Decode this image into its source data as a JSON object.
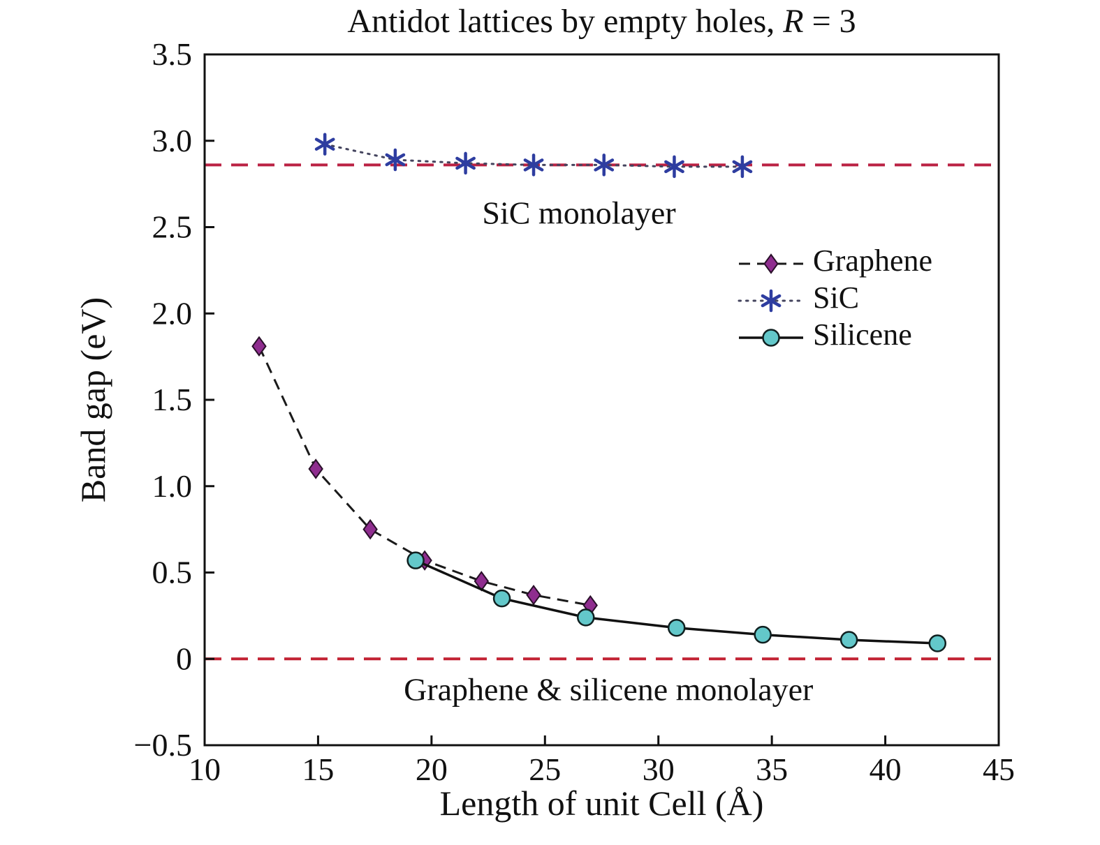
{
  "chart_data": {
    "type": "line",
    "title_parts": [
      {
        "text": "Antidot lattices by empty holes, ",
        "italic": false
      },
      {
        "text": "R",
        "italic": true
      },
      {
        "text": " = 3",
        "italic": false
      }
    ],
    "xlabel": "Length of unit Cell (Å)",
    "ylabel": "Band gap (eV)",
    "xlim": [
      10,
      45
    ],
    "ylim": [
      -0.5,
      3.5
    ],
    "xticks": [
      10,
      15,
      20,
      25,
      30,
      35,
      40,
      45
    ],
    "xtick_labels": [
      "10",
      "15",
      "20",
      "25",
      "30",
      "35",
      "40",
      "45"
    ],
    "yticks": [
      -0.5,
      0,
      0.5,
      1.0,
      1.5,
      2.0,
      2.5,
      3.0,
      3.5
    ],
    "ytick_labels": [
      "−0.5",
      "0",
      "0.5",
      "1.0",
      "1.5",
      "2.0",
      "2.5",
      "3.0",
      "3.5"
    ],
    "grid": false,
    "series": [
      {
        "name": "Graphene",
        "marker": "diamond",
        "marker_color": "#8f2d8f",
        "marker_edge": "#2a102a",
        "line_style": "dashed",
        "line_color": "#1a1a1a",
        "points": [
          [
            12.4,
            1.81
          ],
          [
            14.9,
            1.1
          ],
          [
            17.3,
            0.75
          ],
          [
            19.7,
            0.57
          ],
          [
            22.2,
            0.45
          ],
          [
            24.5,
            0.37
          ],
          [
            27.0,
            0.31
          ]
        ]
      },
      {
        "name": "SiC",
        "marker": "asterisk",
        "marker_color": "#2e3da0",
        "marker_edge": "#2e3da0",
        "line_style": "dotted",
        "line_color": "#44445e",
        "points": [
          [
            15.3,
            2.98
          ],
          [
            18.4,
            2.89
          ],
          [
            21.5,
            2.87
          ],
          [
            24.5,
            2.86
          ],
          [
            27.6,
            2.86
          ],
          [
            30.7,
            2.85
          ],
          [
            33.7,
            2.85
          ]
        ]
      },
      {
        "name": "Silicene",
        "marker": "circle",
        "marker_color": "#63c8ca",
        "marker_edge": "#102020",
        "line_style": "solid",
        "line_color": "#111111",
        "points": [
          [
            19.3,
            0.57
          ],
          [
            23.1,
            0.35
          ],
          [
            26.8,
            0.24
          ],
          [
            30.8,
            0.18
          ],
          [
            34.6,
            0.14
          ],
          [
            38.4,
            0.11
          ],
          [
            42.3,
            0.09
          ]
        ]
      }
    ],
    "reference_lines": [
      {
        "y": 2.86,
        "color": "#bb2244",
        "style": "dashed"
      },
      {
        "y": 0.0,
        "color": "#c22233",
        "style": "dashed"
      }
    ],
    "annotations": [
      {
        "text": "SiC monolayer",
        "x": 26.5,
        "y": 2.52
      },
      {
        "text": "Graphene & silicene monolayer",
        "x": 27.8,
        "y": -0.24
      }
    ],
    "legend": {
      "position": "upper-right",
      "entries": [
        "Graphene",
        "SiC",
        "Silicene"
      ]
    }
  }
}
